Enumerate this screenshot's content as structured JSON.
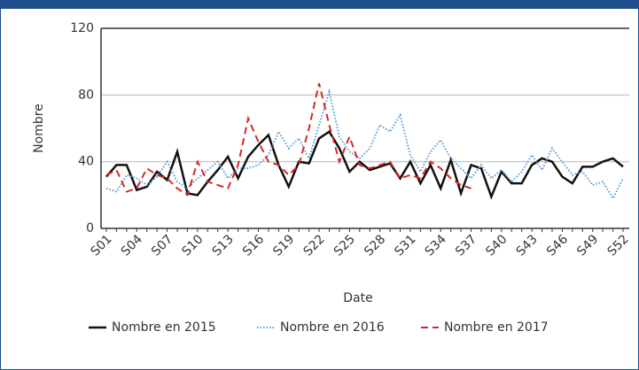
{
  "chart_data": {
    "type": "line",
    "xlabel": "Date",
    "ylabel": "Nombre",
    "categories": [
      "S01",
      null,
      null,
      "S04",
      null,
      null,
      "S07",
      null,
      null,
      "S10",
      null,
      null,
      "S13",
      null,
      null,
      "S16",
      null,
      null,
      "S19",
      null,
      null,
      "S22",
      null,
      null,
      "S25",
      null,
      null,
      "S28",
      null,
      null,
      "S31",
      null,
      null,
      "S34",
      null,
      null,
      "S37",
      null,
      null,
      "S40",
      null,
      null,
      "S43",
      null,
      null,
      "S46",
      null,
      null,
      "S49",
      null,
      null,
      "S52"
    ],
    "series": [
      {
        "name": "Nombre en 2015",
        "color": "#111111",
        "dash": "solid",
        "values": [
          31,
          38,
          38,
          23,
          25,
          34,
          29,
          46,
          21,
          20,
          28,
          35,
          43,
          30,
          43,
          50,
          56,
          38,
          25,
          40,
          39,
          54,
          58,
          48,
          34,
          40,
          35,
          37,
          39,
          30,
          40,
          27,
          38,
          24,
          41,
          21,
          38,
          36,
          19,
          34,
          27,
          27,
          38,
          42,
          40,
          31,
          27,
          37,
          37,
          40,
          42,
          37
        ]
      },
      {
        "name": "Nombre en 2016",
        "color": "#5b9bd5",
        "dash": "dotted",
        "values": [
          24,
          22,
          32,
          30,
          26,
          31,
          40,
          28,
          24,
          30,
          35,
          40,
          30,
          36,
          36,
          38,
          44,
          58,
          48,
          54,
          42,
          62,
          82,
          55,
          46,
          42,
          48,
          62,
          58,
          68,
          44,
          34,
          46,
          53,
          42,
          36,
          30,
          38,
          30,
          35,
          28,
          34,
          44,
          35,
          48,
          40,
          32,
          34,
          26,
          28,
          18,
          30
        ]
      },
      {
        "name": "Nombre en 2017",
        "color": "#d62728",
        "dash": "dashed",
        "values": [
          32,
          35,
          22,
          24,
          36,
          32,
          30,
          24,
          20,
          40,
          28,
          26,
          24,
          38,
          66,
          52,
          40,
          38,
          32,
          38,
          60,
          87,
          62,
          40,
          55,
          38,
          36,
          38,
          40,
          30,
          32,
          30,
          40,
          36,
          30,
          26,
          24,
          null,
          null,
          null,
          null,
          null,
          null,
          null,
          null,
          null,
          null,
          null,
          null,
          null,
          null,
          null
        ]
      }
    ],
    "ylim": [
      0,
      120
    ],
    "yticks": [
      0,
      40,
      80,
      120
    ],
    "grid": true
  }
}
